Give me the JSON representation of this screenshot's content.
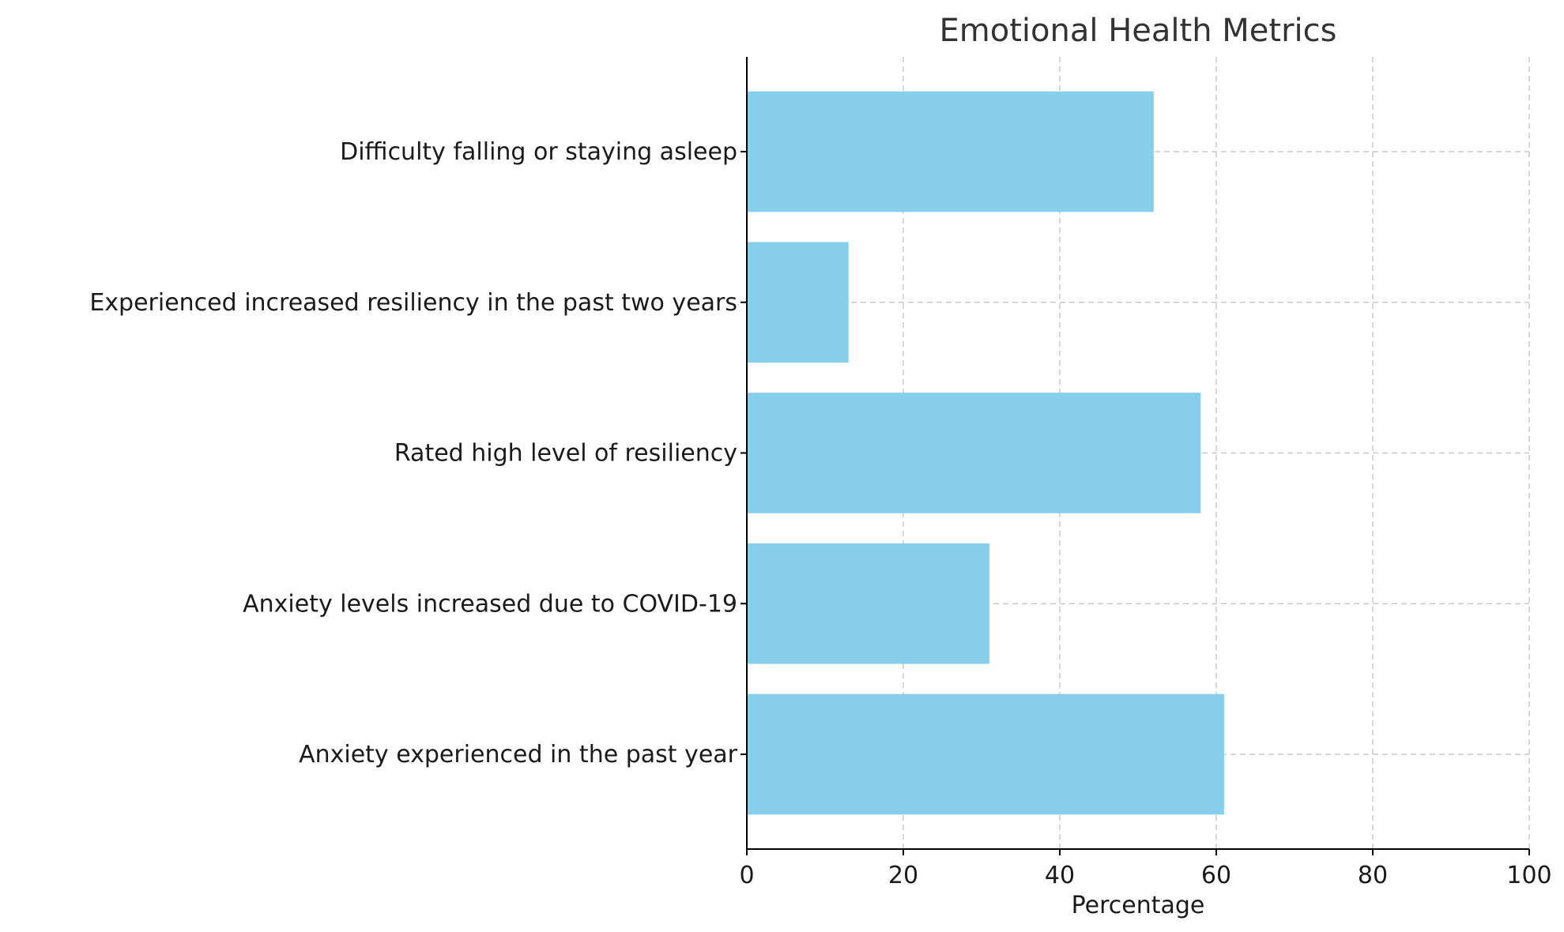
{
  "chart_data": {
    "type": "bar",
    "orientation": "horizontal",
    "title": "Emotional Health Metrics",
    "xlabel": "Percentage",
    "ylabel": "",
    "xlim": [
      0,
      100
    ],
    "xticks": [
      0,
      20,
      40,
      60,
      80,
      100
    ],
    "grid": true,
    "bar_color": "#87CEEB",
    "categories": [
      "Anxiety experienced in the past year",
      "Anxiety levels increased due to COVID-19",
      "Rated high level of resiliency",
      "Experienced increased resiliency in the past two years",
      "Difficulty falling or staying asleep"
    ],
    "values": [
      61,
      31,
      58,
      13,
      52
    ]
  }
}
